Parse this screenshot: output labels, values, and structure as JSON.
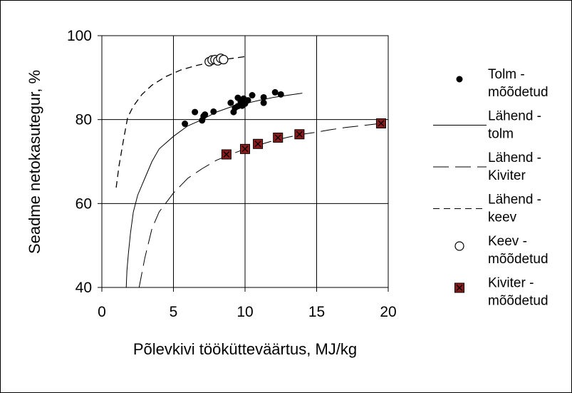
{
  "chart_data": {
    "type": "scatter",
    "xlabel": "Põlevkivi töökütteväärtus, MJ/kg",
    "ylabel": "Seadme netokasutegur, %",
    "xlim": [
      0,
      20
    ],
    "ylim": [
      40,
      100
    ],
    "x_ticks": [
      "0",
      "5",
      "10",
      "15",
      "20"
    ],
    "y_ticks": [
      "40",
      "60",
      "80",
      "100"
    ],
    "grid": true,
    "legend_position": "right",
    "legend": [
      {
        "key": "tolm_mood",
        "line1": "Tolm -",
        "line2": "mõõdetud"
      },
      {
        "key": "lahend_tolm",
        "line1": "Lähend -",
        "line2": "tolm"
      },
      {
        "key": "lahend_kiviter",
        "line1": "Lähend -",
        "line2": "Kiviter"
      },
      {
        "key": "lahend_keev",
        "line1": "Lähend -",
        "line2": "keev"
      },
      {
        "key": "keev_mood",
        "line1": "Keev -",
        "line2": "mõõdetud"
      },
      {
        "key": "kiviter_mood",
        "line1": "Kiviter -",
        "line2": "mõõdetud"
      }
    ],
    "series": [
      {
        "key": "tolm_mood",
        "kind": "points",
        "marker": "dot",
        "points": [
          [
            5.8,
            79
          ],
          [
            6.5,
            81.8
          ],
          [
            7.0,
            79.8
          ],
          [
            7.1,
            80.8
          ],
          [
            7.2,
            81.2
          ],
          [
            7.8,
            81.9
          ],
          [
            9.0,
            84.0
          ],
          [
            9.2,
            81.8
          ],
          [
            9.3,
            82.8
          ],
          [
            9.5,
            83.2
          ],
          [
            9.5,
            85.2
          ],
          [
            9.7,
            84.3
          ],
          [
            9.8,
            83.3
          ],
          [
            9.9,
            85.0
          ],
          [
            10.0,
            83.8
          ],
          [
            10.2,
            84.6
          ],
          [
            10.5,
            85.8
          ],
          [
            11.3,
            84.0
          ],
          [
            11.3,
            85.3
          ],
          [
            12.1,
            86.5
          ],
          [
            12.5,
            86.0
          ]
        ]
      },
      {
        "key": "keev_mood",
        "kind": "points",
        "marker": "open-circle",
        "points": [
          [
            7.5,
            93.8
          ],
          [
            7.7,
            94.2
          ],
          [
            7.9,
            94.3
          ],
          [
            8.1,
            94.0
          ],
          [
            8.3,
            94.6
          ],
          [
            8.5,
            94.3
          ]
        ]
      },
      {
        "key": "kiviter_mood",
        "kind": "points",
        "marker": "x-square",
        "color": "#8B1A1A",
        "points": [
          [
            8.7,
            71.7
          ],
          [
            10.0,
            73.0
          ],
          [
            10.9,
            74.2
          ],
          [
            12.3,
            75.7
          ],
          [
            13.8,
            76.5
          ],
          [
            19.5,
            79.1
          ]
        ]
      },
      {
        "key": "lahend_tolm",
        "kind": "line",
        "dash": "solid",
        "points": [
          [
            1.7,
            40
          ],
          [
            1.75,
            44
          ],
          [
            1.85,
            48
          ],
          [
            2.0,
            53
          ],
          [
            2.2,
            58
          ],
          [
            2.5,
            62
          ],
          [
            3.0,
            66
          ],
          [
            3.5,
            70
          ],
          [
            4.0,
            73
          ],
          [
            5.0,
            76
          ],
          [
            6.0,
            78.5
          ],
          [
            7.0,
            80
          ],
          [
            8.0,
            81.8
          ],
          [
            9.0,
            83
          ],
          [
            10.0,
            83.8
          ],
          [
            11.0,
            84.6
          ],
          [
            12.0,
            85.3
          ],
          [
            13.0,
            85.8
          ],
          [
            14.0,
            86.3
          ]
        ]
      },
      {
        "key": "lahend_kiviter",
        "kind": "line",
        "dash": "long-dash",
        "points": [
          [
            2.6,
            40
          ],
          [
            3.0,
            47
          ],
          [
            3.5,
            54
          ],
          [
            4.0,
            58
          ],
          [
            5.0,
            62.5
          ],
          [
            6.0,
            66
          ],
          [
            7.0,
            68.3
          ],
          [
            8.0,
            70.3
          ],
          [
            9.0,
            71.7
          ],
          [
            10.0,
            73
          ],
          [
            11.0,
            74
          ],
          [
            12.0,
            75
          ],
          [
            13.0,
            75.8
          ],
          [
            14.0,
            76.5
          ],
          [
            15.0,
            77
          ],
          [
            16.0,
            77.6
          ],
          [
            17.0,
            78.1
          ],
          [
            18.0,
            78.5
          ],
          [
            19.5,
            79.1
          ]
        ]
      },
      {
        "key": "lahend_keev",
        "kind": "line",
        "dash": "dash",
        "points": [
          [
            1.0,
            63.8
          ],
          [
            1.2,
            69
          ],
          [
            1.5,
            75
          ],
          [
            1.8,
            80.5
          ],
          [
            2.2,
            83.2
          ],
          [
            2.8,
            86
          ],
          [
            3.5,
            88.2
          ],
          [
            4.5,
            90.3
          ],
          [
            5.5,
            91.8
          ],
          [
            6.5,
            92.8
          ],
          [
            7.5,
            93.6
          ],
          [
            8.5,
            94.3
          ],
          [
            10.0,
            95.0
          ]
        ]
      }
    ]
  }
}
